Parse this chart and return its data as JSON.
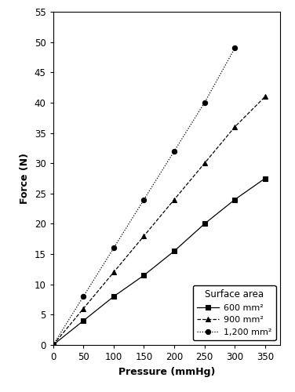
{
  "series": [
    {
      "label": "600 mm²",
      "line_style": "-",
      "marker": "s",
      "color": "#000000",
      "x": [
        0,
        50,
        100,
        150,
        200,
        250,
        300,
        350
      ],
      "y": [
        0,
        4,
        8,
        11.5,
        15.5,
        20,
        24,
        27.5
      ]
    },
    {
      "label": "900 mm²",
      "line_style": "--",
      "marker": "^",
      "color": "#000000",
      "x": [
        0,
        50,
        100,
        150,
        200,
        250,
        300,
        350
      ],
      "y": [
        0,
        6,
        12,
        18,
        24,
        30,
        36,
        41
      ]
    },
    {
      "label": "1,200 mm²",
      "line_style": "dotted",
      "marker": "o",
      "color": "#000000",
      "x": [
        0,
        50,
        100,
        150,
        200,
        250,
        300
      ],
      "y": [
        0,
        8,
        16,
        24,
        32,
        40,
        49
      ]
    }
  ],
  "xlabel": "Pressure (mmHg)",
  "ylabel": "Force (N)",
  "xlim": [
    0,
    375
  ],
  "ylim": [
    0,
    55
  ],
  "xticks": [
    0,
    50,
    100,
    150,
    200,
    250,
    300,
    350
  ],
  "yticks": [
    0,
    5,
    10,
    15,
    20,
    25,
    30,
    35,
    40,
    45,
    50,
    55
  ],
  "legend_title": "Surface area",
  "legend_loc": "lower right",
  "background_color": "#ffffff",
  "figure_width": 3.76,
  "figure_height": 5.0,
  "dpi": 100
}
